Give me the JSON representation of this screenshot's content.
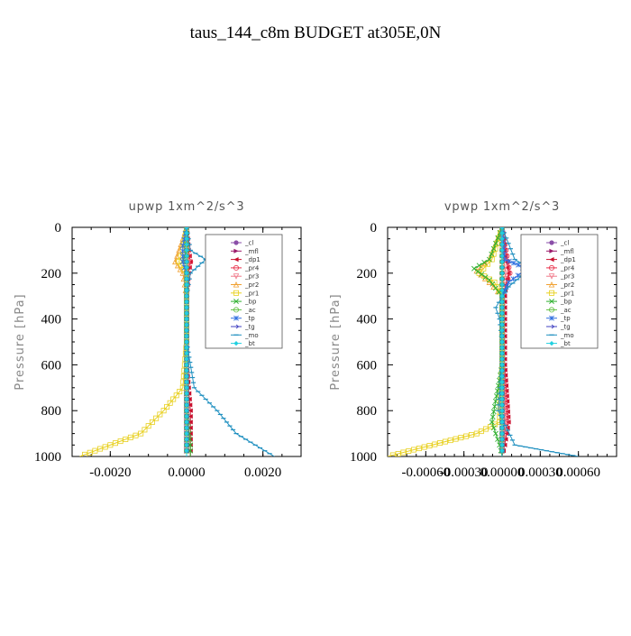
{
  "figure": {
    "title": "taus_144_c8m  BUDGET at305E,0N"
  },
  "legend_entries": [
    {
      "label": "_cl",
      "color": "#8a4fa8",
      "marker": "circle"
    },
    {
      "label": "_mfl",
      "color": "#9b1a6b",
      "marker": "triangle-right"
    },
    {
      "label": "_dp1",
      "color": "#c8102e",
      "marker": "triangle-left"
    },
    {
      "label": "_pr4",
      "color": "#e8304a",
      "marker": "circle-open"
    },
    {
      "label": "_pr3",
      "color": "#f07a8a",
      "marker": "triangle-down-open"
    },
    {
      "label": "_pr2",
      "color": "#f0a030",
      "marker": "triangle-up-open"
    },
    {
      "label": "_pr1",
      "color": "#e8d020",
      "marker": "square-open"
    },
    {
      "label": "_bp",
      "color": "#30b030",
      "marker": "x"
    },
    {
      "label": "_ac",
      "color": "#60c040",
      "marker": "circle-open"
    },
    {
      "label": "_tp",
      "color": "#3070e0",
      "marker": "star"
    },
    {
      "label": "_tg",
      "color": "#4040c0",
      "marker": "arrow-right"
    },
    {
      "label": "_mo",
      "color": "#2090c0",
      "marker": "dash"
    },
    {
      "label": "_bt",
      "color": "#20d0e0",
      "marker": "diamond-filled"
    }
  ],
  "chart_data": [
    {
      "type": "line",
      "title": "upwp  1xm^2/s^3",
      "ylabel": "Pressure [hPa]",
      "xlim": [
        -0.003,
        0.003
      ],
      "ylim": [
        1000,
        0
      ],
      "xticks": [
        -0.002,
        0.0,
        0.002
      ],
      "xtick_labels": [
        "-0.0020",
        "0.0000",
        "0.0020"
      ],
      "yticks": [
        0,
        200,
        400,
        600,
        800,
        1000
      ],
      "ytick_labels": [
        "0",
        "200",
        "400",
        "600",
        "800",
        "1000"
      ],
      "legend_position": "top-right",
      "series": [
        {
          "name": "_cl",
          "x": [
            0,
            0,
            0,
            0,
            0,
            0,
            0,
            0,
            0,
            0,
            0
          ],
          "y": [
            0,
            100,
            200,
            300,
            400,
            500,
            600,
            700,
            800,
            900,
            1000
          ]
        },
        {
          "name": "_mfl",
          "x": [
            0,
            0,
            0,
            0,
            0,
            0,
            0,
            0,
            0,
            0,
            0
          ],
          "y": [
            0,
            100,
            200,
            300,
            400,
            500,
            600,
            700,
            800,
            900,
            1000
          ]
        },
        {
          "name": "_dp1",
          "x": [
            0,
            5e-05,
            0.0001,
            5e-05,
            0,
            0,
            0,
            0,
            0.0001,
            0.0001,
            0.0001
          ],
          "y": [
            0,
            100,
            150,
            200,
            300,
            400,
            500,
            600,
            800,
            900,
            1000
          ]
        },
        {
          "name": "_pr4",
          "x": [
            0,
            0,
            0.0001,
            0,
            0,
            0,
            0,
            0,
            0,
            0,
            0
          ],
          "y": [
            0,
            100,
            150,
            200,
            300,
            400,
            500,
            600,
            800,
            900,
            1000
          ]
        },
        {
          "name": "_pr3",
          "x": [
            0,
            0,
            5e-05,
            0,
            0,
            0,
            0,
            0,
            0,
            0,
            0
          ],
          "y": [
            0,
            100,
            150,
            200,
            300,
            400,
            500,
            600,
            800,
            900,
            1000
          ]
        },
        {
          "name": "_pr2",
          "x": [
            0,
            -0.0002,
            -0.0003,
            -0.0001,
            0,
            0,
            0,
            0,
            0,
            0,
            0
          ],
          "y": [
            0,
            100,
            150,
            200,
            300,
            400,
            500,
            600,
            800,
            900,
            1000
          ]
        },
        {
          "name": "_pr1",
          "x": [
            0,
            -0.0001,
            -0.0002,
            0,
            0,
            0,
            0,
            -0.0001,
            -0.0006,
            -0.0012,
            -0.0028
          ],
          "y": [
            0,
            100,
            150,
            200,
            300,
            400,
            500,
            700,
            800,
            900,
            1000
          ]
        },
        {
          "name": "_bp",
          "x": [
            0,
            0,
            -0.0001,
            0,
            0,
            0,
            0,
            0,
            0,
            0.0001,
            0.0001
          ],
          "y": [
            0,
            100,
            150,
            200,
            300,
            400,
            500,
            600,
            800,
            950,
            1000
          ]
        },
        {
          "name": "_ac",
          "x": [
            0,
            0,
            0,
            0,
            0,
            0,
            0,
            0,
            0,
            0,
            0
          ],
          "y": [
            0,
            100,
            200,
            300,
            400,
            500,
            600,
            700,
            800,
            900,
            1000
          ]
        },
        {
          "name": "_tp",
          "x": [
            0,
            -0.0001,
            -0.0001,
            0,
            0,
            0,
            0,
            0,
            0,
            0,
            0
          ],
          "y": [
            0,
            80,
            150,
            200,
            300,
            400,
            500,
            600,
            800,
            900,
            1000
          ]
        },
        {
          "name": "_tg",
          "x": [
            0,
            0,
            0,
            0,
            0,
            0,
            0,
            0,
            0,
            0,
            0
          ],
          "y": [
            0,
            100,
            200,
            300,
            400,
            500,
            600,
            700,
            800,
            900,
            1000
          ]
        },
        {
          "name": "_mo",
          "x": [
            0,
            0.0001,
            0.0005,
            0.0001,
            0,
            0,
            0,
            0.0002,
            0.0008,
            0.0013,
            0.0023
          ],
          "y": [
            0,
            100,
            140,
            200,
            300,
            400,
            500,
            700,
            800,
            900,
            1000
          ]
        },
        {
          "name": "_bt",
          "x": [
            0,
            0,
            0,
            0,
            0,
            0,
            0,
            0,
            0,
            0,
            0
          ],
          "y": [
            0,
            100,
            200,
            300,
            400,
            500,
            600,
            700,
            800,
            900,
            1000
          ]
        }
      ]
    },
    {
      "type": "line",
      "title": "vpwp  1xm^2/s^3",
      "ylabel": "Pressure [hPa]",
      "xlim": [
        -0.0009,
        0.0009
      ],
      "ylim": [
        1000,
        0
      ],
      "xticks": [
        -0.0006,
        -0.0003,
        0.0,
        0.0003,
        0.0006
      ],
      "xtick_labels": [
        "-0.00060",
        "-0.00030",
        "0.00000",
        "0.00030",
        "0.00060"
      ],
      "yticks": [
        0,
        200,
        400,
        600,
        800,
        1000
      ],
      "ytick_labels": [
        "0",
        "200",
        "400",
        "600",
        "800",
        "1000"
      ],
      "legend_position": "top-right",
      "series": [
        {
          "name": "_cl",
          "x": [
            0,
            0,
            0,
            0,
            0,
            0,
            0,
            0,
            0,
            0,
            0
          ],
          "y": [
            0,
            100,
            200,
            300,
            400,
            500,
            600,
            700,
            800,
            900,
            1000
          ]
        },
        {
          "name": "_mfl",
          "x": [
            0,
            0,
            0,
            0,
            0,
            0,
            0,
            0,
            0,
            0,
            0
          ],
          "y": [
            0,
            100,
            200,
            300,
            400,
            500,
            600,
            700,
            800,
            900,
            1000
          ]
        },
        {
          "name": "_dp1",
          "x": [
            0,
            2e-05,
            5e-05,
            3e-05,
            2e-05,
            2e-05,
            2e-05,
            2e-05,
            5e-05,
            2e-05,
            0
          ],
          "y": [
            0,
            100,
            200,
            250,
            300,
            400,
            500,
            600,
            850,
            950,
            1000
          ]
        },
        {
          "name": "_pr4",
          "x": [
            0,
            3e-05,
            6e-05,
            3e-05,
            0,
            0,
            0,
            0,
            4e-05,
            0,
            0
          ],
          "y": [
            0,
            100,
            200,
            250,
            300,
            400,
            500,
            600,
            850,
            950,
            1000
          ]
        },
        {
          "name": "_pr3",
          "x": [
            0,
            0,
            3e-05,
            0,
            0,
            0,
            0,
            0,
            2e-05,
            0,
            0
          ],
          "y": [
            0,
            100,
            200,
            250,
            300,
            400,
            500,
            600,
            850,
            950,
            1000
          ]
        },
        {
          "name": "_pr2",
          "x": [
            0,
            -0.0001,
            -0.0002,
            -0.0001,
            0,
            0,
            0,
            0,
            0,
            0,
            0
          ],
          "y": [
            0,
            140,
            190,
            240,
            300,
            400,
            500,
            600,
            800,
            900,
            1000
          ]
        },
        {
          "name": "_pr1",
          "x": [
            0,
            -8e-05,
            -0.00018,
            -6e-05,
            0,
            0,
            0,
            0,
            -2e-05,
            -0.0002,
            -0.0009
          ],
          "y": [
            0,
            140,
            200,
            240,
            300,
            400,
            500,
            600,
            850,
            900,
            1000
          ]
        },
        {
          "name": "_bp",
          "x": [
            0,
            -0.0001,
            -0.00022,
            -0.0001,
            0,
            0,
            0,
            0,
            -8e-05,
            -2e-05,
            0
          ],
          "y": [
            0,
            140,
            180,
            230,
            300,
            400,
            500,
            600,
            850,
            950,
            1000
          ]
        },
        {
          "name": "_ac",
          "x": [
            0,
            0,
            0,
            0,
            0,
            0,
            0,
            0,
            0,
            0,
            0
          ],
          "y": [
            0,
            100,
            200,
            300,
            400,
            500,
            600,
            700,
            800,
            900,
            1000
          ]
        },
        {
          "name": "_tp",
          "x": [
            0,
            2e-05,
            0.0002,
            5e-05,
            0,
            0,
            0,
            0,
            0,
            0,
            0
          ],
          "y": [
            0,
            140,
            180,
            240,
            300,
            400,
            500,
            600,
            800,
            900,
            1000
          ]
        },
        {
          "name": "_tg",
          "x": [
            0,
            0,
            0,
            0,
            0,
            0,
            0,
            0,
            0,
            0,
            0
          ],
          "y": [
            0,
            100,
            200,
            300,
            400,
            500,
            600,
            700,
            800,
            900,
            1000
          ]
        },
        {
          "name": "_mo",
          "x": [
            0,
            0.0001,
            0.00022,
            5e-05,
            -5e-05,
            -2e-05,
            0,
            0,
            -3e-05,
            0.0001,
            0.0006
          ],
          "y": [
            0,
            140,
            180,
            260,
            350,
            400,
            500,
            600,
            800,
            950,
            1000
          ]
        },
        {
          "name": "_bt",
          "x": [
            0,
            0,
            0,
            0,
            0,
            0,
            0,
            0,
            0,
            0,
            0
          ],
          "y": [
            0,
            100,
            200,
            300,
            400,
            500,
            600,
            700,
            800,
            900,
            1000
          ]
        }
      ]
    }
  ]
}
